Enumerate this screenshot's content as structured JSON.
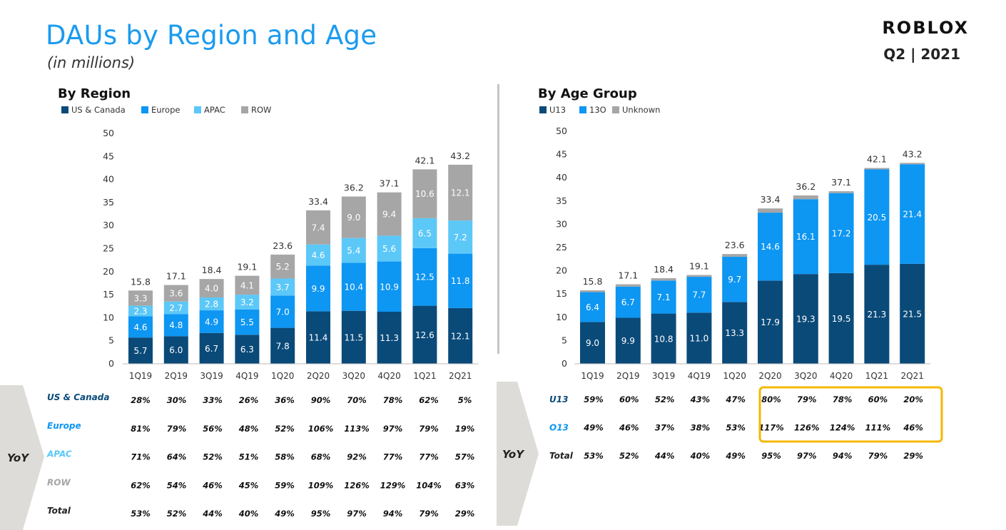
{
  "header": {
    "title": "DAUs by Region and Age",
    "subtitle": "(in millions)",
    "brand": "ROBLOX",
    "period": "Q2 | 2021"
  },
  "colors": {
    "title_blue": "#1b9bef",
    "dark_navy": "#0a4a79",
    "bright_blue": "#0d96f2",
    "light_blue": "#5cc8f8",
    "gray": "#a6a6a6",
    "highlight": "#f5b800"
  },
  "chart_data": [
    {
      "type": "bar",
      "stacked": true,
      "title": "By Region",
      "categories": [
        "1Q19",
        "2Q19",
        "3Q19",
        "4Q19",
        "1Q20",
        "2Q20",
        "3Q20",
        "4Q20",
        "1Q21",
        "2Q21"
      ],
      "ylim": [
        0,
        50
      ],
      "yticks": [
        0,
        5,
        10,
        15,
        20,
        25,
        30,
        35,
        40,
        45,
        50
      ],
      "legend_position": "top-left",
      "series": [
        {
          "name": "US & Canada",
          "color": "#0a4a79",
          "values": [
            5.7,
            6.0,
            6.7,
            6.3,
            7.8,
            11.4,
            11.5,
            11.3,
            12.6,
            12.1
          ],
          "labels": [
            "5.7",
            "6.0",
            "6.7",
            "6.3",
            "7.8",
            "11.4",
            "11.5",
            "11.3",
            "12.6",
            "12.1"
          ]
        },
        {
          "name": "Europe",
          "color": "#0d96f2",
          "values": [
            4.6,
            4.8,
            4.9,
            5.5,
            7.0,
            9.9,
            10.4,
            10.9,
            12.5,
            11.8
          ],
          "labels": [
            "4.6",
            "4.8",
            "4.9",
            "5.5",
            "7.0",
            "9.9",
            "10.4",
            "10.9",
            "12.5",
            "11.8"
          ]
        },
        {
          "name": "APAC",
          "color": "#5cc8f8",
          "values": [
            2.3,
            2.7,
            2.8,
            3.2,
            3.7,
            4.6,
            5.4,
            5.6,
            6.5,
            7.2
          ],
          "labels": [
            "2.3",
            "2.7",
            "2.8",
            "3.2",
            "3.7",
            "4.6",
            "5.4",
            "5.6",
            "6.5",
            "7.2"
          ]
        },
        {
          "name": "ROW",
          "color": "#a6a6a6",
          "values": [
            3.3,
            3.6,
            4.0,
            4.1,
            5.2,
            7.4,
            9.0,
            9.4,
            10.6,
            12.1
          ],
          "labels": [
            "3.3",
            "3.6",
            "4.0",
            "4.1",
            "5.2",
            "7.4",
            "9.0",
            "9.4",
            "10.6",
            "12.1"
          ]
        }
      ],
      "totals": [
        "15.8",
        "17.1",
        "18.4",
        "19.1",
        "23.6",
        "33.4",
        "36.2",
        "37.1",
        "42.1",
        "43.2"
      ]
    },
    {
      "type": "bar",
      "stacked": true,
      "title": "By Age Group",
      "categories": [
        "1Q19",
        "2Q19",
        "3Q19",
        "4Q19",
        "1Q20",
        "2Q20",
        "3Q20",
        "4Q20",
        "1Q21",
        "2Q21"
      ],
      "ylim": [
        0,
        50
      ],
      "yticks": [
        0,
        5,
        10,
        15,
        20,
        25,
        30,
        35,
        40,
        45,
        50
      ],
      "legend_position": "top-left",
      "series": [
        {
          "name": "U13",
          "color": "#0a4a79",
          "values": [
            9.0,
            9.9,
            10.8,
            11.0,
            13.3,
            17.9,
            19.3,
            19.5,
            21.3,
            21.5
          ],
          "labels": [
            "9.0",
            "9.9",
            "10.8",
            "11.0",
            "13.3",
            "17.9",
            "19.3",
            "19.5",
            "21.3",
            "21.5"
          ]
        },
        {
          "name": "13O",
          "color": "#0d96f2",
          "values": [
            6.4,
            6.7,
            7.1,
            7.7,
            9.7,
            14.6,
            16.1,
            17.2,
            20.5,
            21.4
          ],
          "labels": [
            "6.4",
            "6.7",
            "7.1",
            "7.7",
            "9.7",
            "14.6",
            "16.1",
            "17.2",
            "20.5",
            "21.4"
          ]
        },
        {
          "name": "Unknown",
          "color": "#a6a6a6",
          "values": [
            0.4,
            0.5,
            0.5,
            0.4,
            0.6,
            0.9,
            0.8,
            0.4,
            0.3,
            0.3
          ],
          "labels": [
            "",
            "",
            "",
            "",
            "",
            "",
            "",
            "",
            "",
            ""
          ]
        }
      ],
      "totals": [
        "15.8",
        "17.1",
        "18.4",
        "19.1",
        "23.6",
        "33.4",
        "36.2",
        "37.1",
        "42.1",
        "43.2"
      ]
    }
  ],
  "yoy": {
    "label": "YoY",
    "region": [
      {
        "name": "US & Canada",
        "color": "#0a4a79",
        "values": [
          "28%",
          "30%",
          "33%",
          "26%",
          "36%",
          "90%",
          "70%",
          "78%",
          "62%",
          "5%"
        ]
      },
      {
        "name": "Europe",
        "color": "#0d96f2",
        "values": [
          "81%",
          "79%",
          "56%",
          "48%",
          "52%",
          "106%",
          "113%",
          "97%",
          "79%",
          "19%"
        ]
      },
      {
        "name": "APAC",
        "color": "#5cc8f8",
        "values": [
          "71%",
          "64%",
          "52%",
          "51%",
          "58%",
          "68%",
          "92%",
          "77%",
          "77%",
          "57%"
        ]
      },
      {
        "name": "ROW",
        "color": "#a6a6a6",
        "values": [
          "62%",
          "54%",
          "46%",
          "45%",
          "59%",
          "109%",
          "126%",
          "129%",
          "104%",
          "63%"
        ]
      },
      {
        "name": "Total",
        "color": "#222222",
        "values": [
          "53%",
          "52%",
          "44%",
          "40%",
          "49%",
          "95%",
          "97%",
          "94%",
          "79%",
          "29%"
        ]
      }
    ],
    "age": [
      {
        "name": "U13",
        "color": "#0a4a79",
        "values": [
          "59%",
          "60%",
          "52%",
          "43%",
          "47%",
          "80%",
          "79%",
          "78%",
          "60%",
          "20%"
        ]
      },
      {
        "name": "O13",
        "color": "#0d96f2",
        "values": [
          "49%",
          "46%",
          "37%",
          "38%",
          "53%",
          "117%",
          "126%",
          "124%",
          "111%",
          "46%"
        ]
      },
      {
        "name": "Total",
        "color": "#222222",
        "values": [
          "53%",
          "52%",
          "44%",
          "40%",
          "49%",
          "95%",
          "97%",
          "94%",
          "79%",
          "29%"
        ]
      }
    ]
  }
}
